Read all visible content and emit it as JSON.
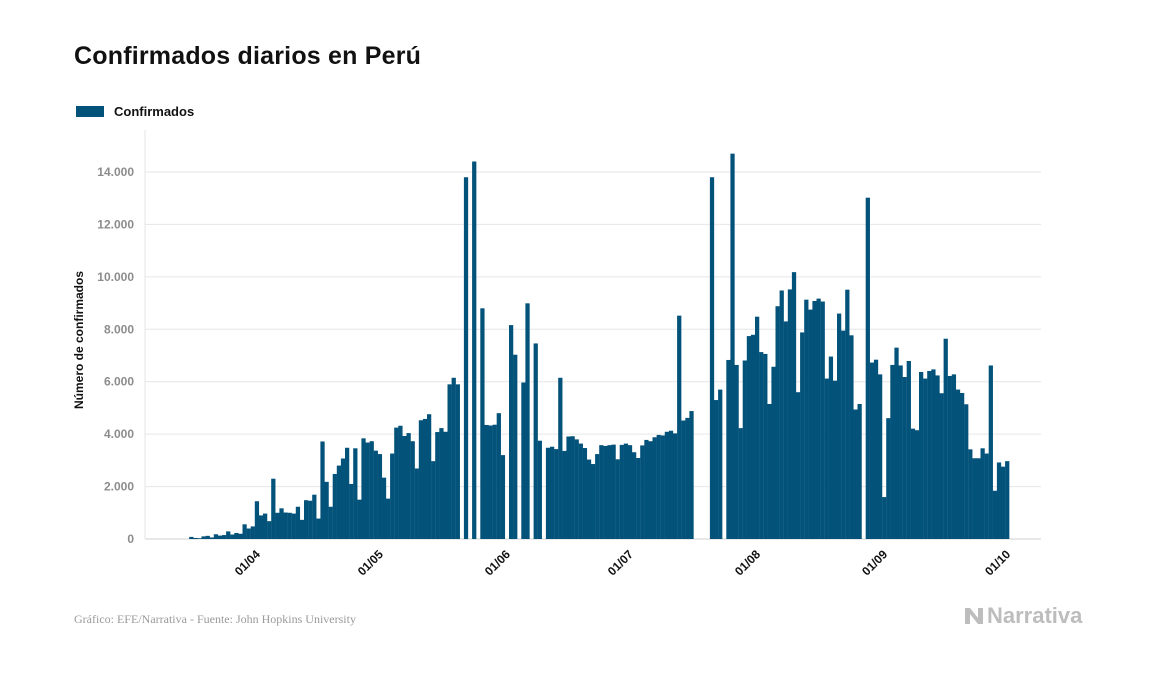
{
  "colors": {
    "bar": "#03527a",
    "grid": "#e6e6e6",
    "axis_text": "#8c8c8c",
    "brand": "#bdbdbd"
  },
  "footer": {
    "source": "Gráfico: EFE/Narrativa - Fuente: John Hopkins University",
    "brand": "Narrativa",
    "brand_icon": "narrativa-logo-icon"
  },
  "chart_data": {
    "type": "bar",
    "title": "Confirmados diarios en Perú",
    "ylabel": "Número de confirmados",
    "xlabel": "",
    "ylim": [
      0,
      15000
    ],
    "yticks": [
      0,
      2000,
      4000,
      6000,
      8000,
      10000,
      12000,
      14000
    ],
    "ytick_labels": [
      "0",
      "2.000",
      "4.000",
      "6.000",
      "8.000",
      "10.000",
      "12.000",
      "14.000"
    ],
    "grid": true,
    "legend_position": "top-left",
    "x_start": "2020-03-06",
    "xticks": [
      "2020-04-01",
      "2020-05-01",
      "2020-06-01",
      "2020-07-01",
      "2020-08-01",
      "2020-09-01",
      "2020-10-01"
    ],
    "xtick_labels": [
      "01/04",
      "01/05",
      "01/06",
      "01/07",
      "01/08",
      "01/09",
      "01/10"
    ],
    "series": [
      {
        "name": "Confirmados",
        "values": [
          0,
          0,
          0,
          0,
          0,
          0,
          0,
          0,
          0,
          0,
          80,
          40,
          30,
          100,
          120,
          60,
          180,
          130,
          150,
          290,
          170,
          230,
          200,
          560,
          400,
          480,
          1440,
          900,
          970,
          680,
          2300,
          1000,
          1170,
          1010,
          1000,
          970,
          1230,
          730,
          1480,
          1460,
          1690,
          780,
          3720,
          2180,
          1230,
          2480,
          2800,
          3070,
          3480,
          2100,
          3460,
          1500,
          3840,
          3680,
          3730,
          3370,
          3240,
          2340,
          1540,
          3260,
          4250,
          4320,
          3930,
          4040,
          3730,
          2690,
          4530,
          4580,
          4760,
          2970,
          4080,
          4230,
          4090,
          5900,
          6150,
          5900,
          0,
          13800,
          0,
          14400,
          0,
          8800,
          4350,
          4330,
          4360,
          4800,
          3200,
          0,
          8160,
          7030,
          0,
          5970,
          8990,
          0,
          7460,
          3750,
          0,
          3480,
          3520,
          3430,
          6150,
          3360,
          3910,
          3920,
          3800,
          3640,
          3470,
          3030,
          2860,
          3240,
          3580,
          3550,
          3580,
          3600,
          3040,
          3590,
          3640,
          3580,
          3310,
          3090,
          3570,
          3780,
          3730,
          3880,
          3970,
          3950,
          4090,
          4130,
          4030,
          8520,
          4520,
          4620,
          4880,
          0,
          0,
          0,
          0,
          13800,
          5300,
          5700,
          0,
          6830,
          14700,
          6640,
          4230,
          6810,
          7740,
          7790,
          8480,
          7130,
          7060,
          5150,
          6570,
          8880,
          9480,
          8300,
          9520,
          10180,
          5600,
          7880,
          9130,
          8750,
          9080,
          9170,
          9060,
          6120,
          6960,
          6040,
          8600,
          7950,
          9510,
          7770,
          4940,
          5150,
          0,
          13020,
          6730,
          6840,
          6280,
          1600,
          4610,
          6640,
          7300,
          6620,
          6180,
          6790,
          4210,
          4150,
          6370,
          6120,
          6410,
          6470,
          6240,
          5560,
          7640,
          6220,
          6280,
          5700,
          5570,
          5140,
          3420,
          3080,
          3080,
          3460,
          3260,
          6620,
          1840,
          2920,
          2760,
          2970
        ]
      }
    ]
  }
}
